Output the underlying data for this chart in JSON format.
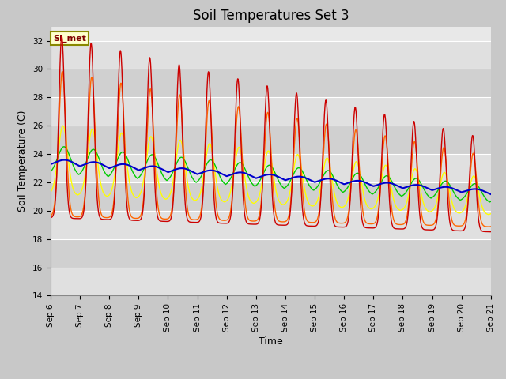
{
  "title": "Soil Temperatures Set 3",
  "xlabel": "Time",
  "ylabel": "Soil Temperature (C)",
  "ylim": [
    14,
    33
  ],
  "yticks": [
    14,
    16,
    18,
    20,
    22,
    24,
    26,
    28,
    30,
    32
  ],
  "x_tick_labels": [
    "Sep 6",
    "Sep 7",
    "Sep 8",
    "Sep 9",
    "Sep 10",
    "Sep 11",
    "Sep 12",
    "Sep 13",
    "Sep 14",
    "Sep 15",
    "Sep 16",
    "Sep 17",
    "Sep 18",
    "Sep 19",
    "Sep 20",
    "Sep 21"
  ],
  "series_colors": {
    "TC3_2Cm": "#cc0000",
    "TC3_4Cm": "#ff6600",
    "TC3_8Cm": "#ffff00",
    "TC3_16Cm": "#00cc00",
    "TC3_32Cm": "#0000cc"
  },
  "annotation_text": "SI_met",
  "title_fontsize": 12,
  "axis_label_fontsize": 9,
  "tick_fontsize": 7.5,
  "legend_fontsize": 8,
  "fig_facecolor": "#c8c8c8",
  "ax_facecolor": "#e8e8e8",
  "band_colors": [
    "#e0e0e0",
    "#d0d0d0"
  ],
  "grid_color": "#ffffff"
}
